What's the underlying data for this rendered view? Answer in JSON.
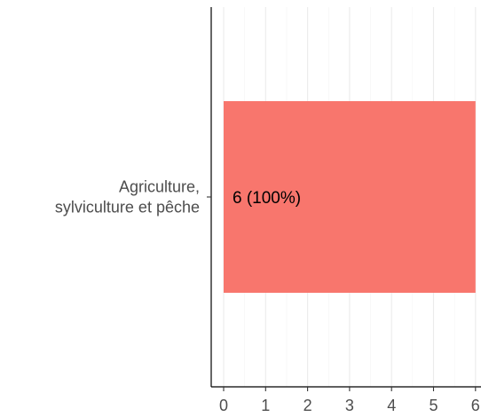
{
  "chart_data": {
    "type": "bar",
    "orientation": "horizontal",
    "categories": [
      [
        "Agriculture,",
        "sylviculture et pêche"
      ]
    ],
    "values": [
      6
    ],
    "data_labels": [
      "6 (100%)"
    ],
    "xlim": [
      0,
      6
    ],
    "xticks": [
      "0",
      "1",
      "2",
      "3",
      "4",
      "5",
      "6"
    ],
    "grid": true,
    "bar_color": "#F8766D",
    "title": "",
    "xlabel": "",
    "ylabel": ""
  }
}
